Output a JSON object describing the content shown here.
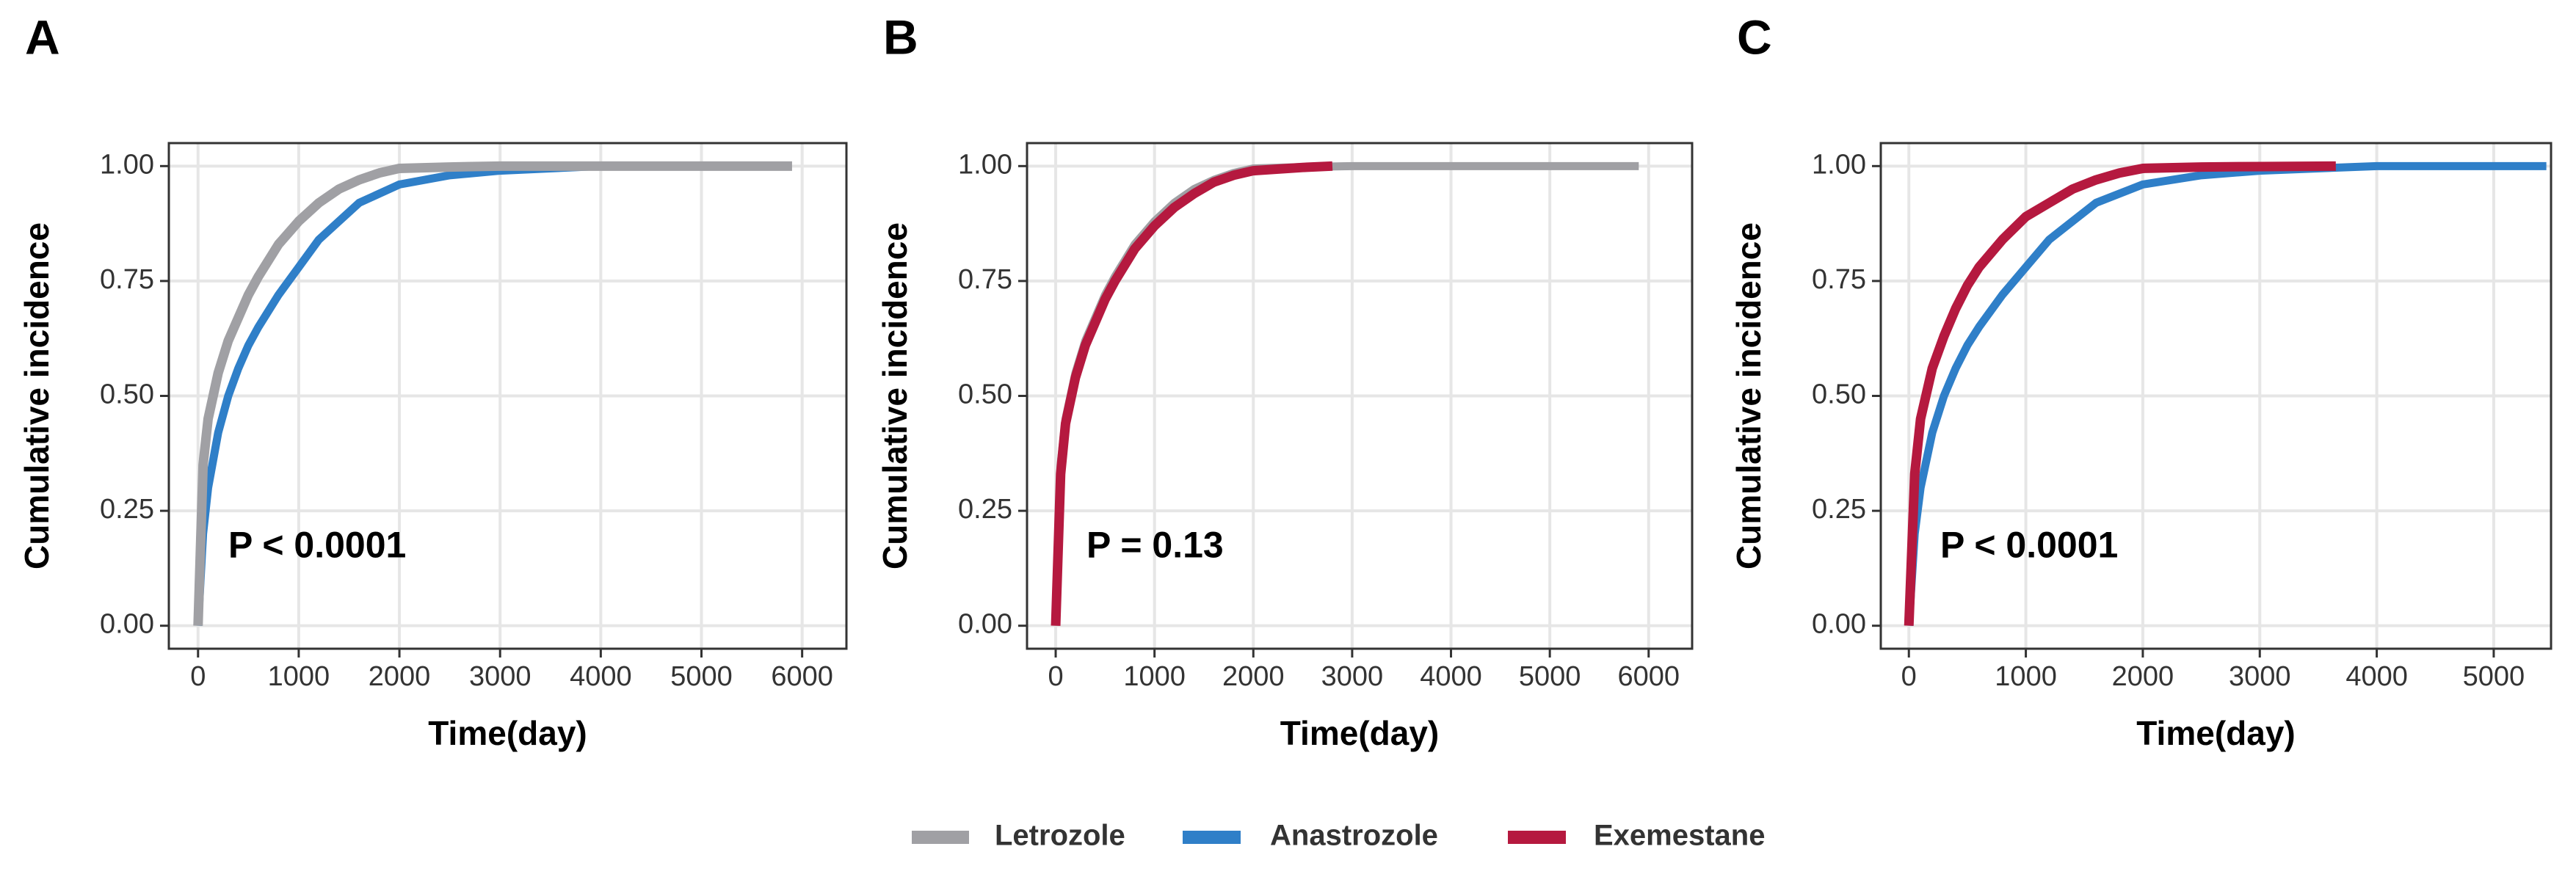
{
  "chart_data": [
    {
      "type": "line",
      "panel_label": "A",
      "annotation": "P < 0.0001",
      "xlabel": "Time(day)",
      "ylabel": "Cumulative incidence",
      "xlim": [
        -290,
        6440
      ],
      "ylim": [
        -0.05,
        1.05
      ],
      "grid": true,
      "xticks": [
        0,
        1000,
        2000,
        3000,
        4000,
        5000,
        6000
      ],
      "yticks": [
        {
          "value": 0,
          "label": "0.00"
        },
        {
          "value": 0.25,
          "label": "0.25"
        },
        {
          "value": 0.5,
          "label": "0.50"
        },
        {
          "value": 0.75,
          "label": "0.75"
        },
        {
          "value": 1,
          "label": "1.00"
        }
      ],
      "series": [
        {
          "name": "Anastrozole",
          "color": "#2f7fc8",
          "x": [
            0,
            50,
            100,
            200,
            300,
            400,
            500,
            600,
            800,
            1000,
            1200,
            1400,
            1600,
            1800,
            2000,
            2500,
            3000,
            4000
          ],
          "values": [
            0,
            0.2,
            0.3,
            0.42,
            0.5,
            0.56,
            0.61,
            0.65,
            0.72,
            0.78,
            0.84,
            0.88,
            0.92,
            0.94,
            0.96,
            0.98,
            0.99,
            1
          ]
        },
        {
          "name": "Letrozole",
          "color": "#a0a0a4",
          "x": [
            0,
            50,
            100,
            200,
            300,
            400,
            500,
            600,
            800,
            1000,
            1200,
            1400,
            1600,
            1800,
            2000,
            2500,
            3000,
            4000,
            5000,
            5900
          ],
          "values": [
            0,
            0.35,
            0.45,
            0.55,
            0.62,
            0.67,
            0.72,
            0.76,
            0.83,
            0.88,
            0.92,
            0.95,
            0.97,
            0.985,
            0.995,
            0.998,
            1,
            1,
            1,
            1
          ]
        }
      ]
    },
    {
      "type": "line",
      "panel_label": "B",
      "annotation": "P = 0.13",
      "xlabel": "Time(day)",
      "ylabel": "Cumulative incidence",
      "xlim": [
        -290,
        6440
      ],
      "ylim": [
        -0.05,
        1.05
      ],
      "grid": true,
      "xticks": [
        0,
        1000,
        2000,
        3000,
        4000,
        5000,
        6000
      ],
      "yticks": [
        {
          "value": 0,
          "label": "0.00"
        },
        {
          "value": 0.25,
          "label": "0.25"
        },
        {
          "value": 0.5,
          "label": "0.50"
        },
        {
          "value": 0.75,
          "label": "0.75"
        },
        {
          "value": 1,
          "label": "1.00"
        }
      ],
      "series": [
        {
          "name": "Letrozole",
          "color": "#a0a0a4",
          "x": [
            0,
            50,
            100,
            200,
            300,
            400,
            500,
            600,
            800,
            1000,
            1200,
            1400,
            1600,
            1800,
            2000,
            2500,
            3000,
            4000,
            5000,
            5900
          ],
          "values": [
            0,
            0.35,
            0.45,
            0.55,
            0.62,
            0.67,
            0.72,
            0.76,
            0.83,
            0.88,
            0.92,
            0.95,
            0.97,
            0.985,
            0.995,
            0.998,
            1,
            1,
            1,
            1
          ]
        },
        {
          "name": "Exemestane",
          "color": "#b5193f",
          "x": [
            0,
            50,
            100,
            200,
            300,
            400,
            500,
            600,
            800,
            1000,
            1200,
            1400,
            1600,
            1800,
            2000,
            2500,
            2800
          ],
          "values": [
            0,
            0.33,
            0.44,
            0.54,
            0.61,
            0.66,
            0.71,
            0.75,
            0.82,
            0.87,
            0.91,
            0.94,
            0.965,
            0.98,
            0.99,
            0.997,
            1
          ]
        }
      ]
    },
    {
      "type": "line",
      "panel_label": "C",
      "annotation": "P < 0.0001",
      "xlabel": "Time(day)",
      "ylabel": "Cumulative incidence",
      "xlim": [
        -240,
        5490
      ],
      "ylim": [
        -0.05,
        1.05
      ],
      "grid": true,
      "xticks": [
        0,
        1000,
        2000,
        3000,
        4000,
        5000
      ],
      "yticks": [
        {
          "value": 0,
          "label": "0.00"
        },
        {
          "value": 0.25,
          "label": "0.25"
        },
        {
          "value": 0.5,
          "label": "0.50"
        },
        {
          "value": 0.75,
          "label": "0.75"
        },
        {
          "value": 1,
          "label": "1.00"
        }
      ],
      "series": [
        {
          "name": "Anastrozole",
          "color": "#2f7fc8",
          "x": [
            0,
            50,
            100,
            200,
            300,
            400,
            500,
            600,
            800,
            1000,
            1200,
            1400,
            1600,
            1800,
            2000,
            2500,
            3000,
            4000,
            5000,
            5450
          ],
          "values": [
            0,
            0.2,
            0.3,
            0.42,
            0.5,
            0.56,
            0.61,
            0.65,
            0.72,
            0.78,
            0.84,
            0.88,
            0.92,
            0.94,
            0.96,
            0.98,
            0.99,
            1,
            1,
            1
          ]
        },
        {
          "name": "Exemestane",
          "color": "#b5193f",
          "x": [
            0,
            50,
            100,
            200,
            300,
            400,
            500,
            600,
            800,
            1000,
            1200,
            1400,
            1600,
            1800,
            2000,
            2500,
            3000,
            3650
          ],
          "values": [
            0,
            0.33,
            0.45,
            0.56,
            0.63,
            0.69,
            0.74,
            0.78,
            0.84,
            0.89,
            0.92,
            0.95,
            0.97,
            0.985,
            0.995,
            0.998,
            0.999,
            1
          ]
        }
      ]
    }
  ]
}
